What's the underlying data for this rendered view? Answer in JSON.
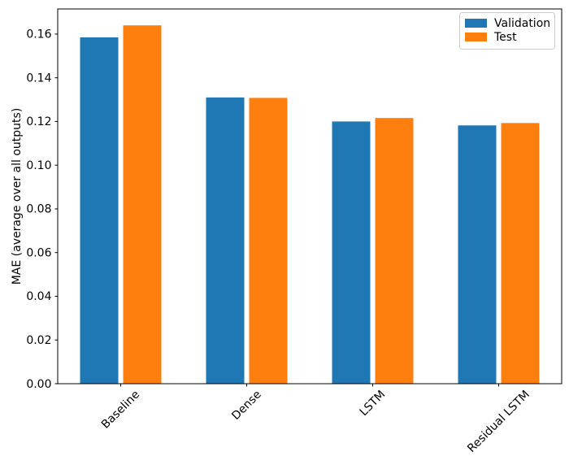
{
  "chart_data": {
    "type": "bar",
    "title": "",
    "categories": [
      "Baseline",
      "Dense",
      "LSTM",
      "Residual LSTM"
    ],
    "series": [
      {
        "name": "Validation",
        "color": "#1f77b4",
        "values": [
          0.1585,
          0.131,
          0.12,
          0.1182
        ]
      },
      {
        "name": "Test",
        "color": "#ff7f0e",
        "values": [
          0.164,
          0.1308,
          0.1216,
          0.1193
        ]
      }
    ],
    "xlabel": "",
    "ylabel": "MAE (average over all outputs)",
    "ylim": [
      0,
      0.1715
    ],
    "yticks": {
      "values": [
        0.0,
        0.02,
        0.04,
        0.06,
        0.08,
        0.1,
        0.12,
        0.14,
        0.16
      ],
      "labels": [
        "0.00",
        "0.02",
        "0.04",
        "0.06",
        "0.08",
        "0.10",
        "0.12",
        "0.14",
        "0.16"
      ]
    },
    "xtick_rotation_deg": 45,
    "grid": false,
    "legend": {
      "position": "upper-right",
      "entries": [
        "Validation",
        "Test"
      ],
      "background": "#ffffff",
      "border_color": "#cccccc"
    },
    "axis_color": "#000000",
    "text_color": "#000000"
  }
}
